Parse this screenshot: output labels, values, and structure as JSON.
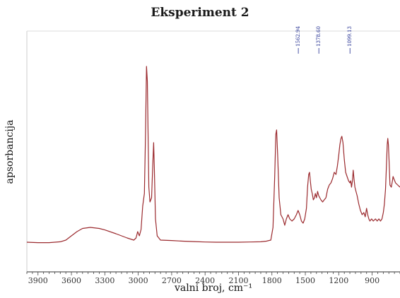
{
  "chart_data": {
    "type": "line",
    "title": "Eksperiment 2",
    "xlabel": "valni broj, cm⁻¹",
    "ylabel": "apsorbancija",
    "xlim": [
      4000,
      650
    ],
    "x_ticks": [
      3900,
      3600,
      3300,
      3000,
      2700,
      2400,
      2100,
      1800,
      1500,
      1200,
      900
    ],
    "grid": false,
    "legend": "none",
    "line_color": "#9b2a2e",
    "peak_color": "#1d2a8f",
    "peak_labels": [
      {
        "x": 1562.94,
        "label": "1562.94"
      },
      {
        "x": 1378.6,
        "label": "1378.60"
      },
      {
        "x": 1099.13,
        "label": "1099.13"
      }
    ],
    "ylim": [
      0,
      1
    ],
    "series": [
      {
        "values": [
          [
            4000,
            0.09
          ],
          [
            3900,
            0.088
          ],
          [
            3800,
            0.088
          ],
          [
            3700,
            0.092
          ],
          [
            3650,
            0.1
          ],
          [
            3600,
            0.12
          ],
          [
            3550,
            0.14
          ],
          [
            3500,
            0.155
          ],
          [
            3430,
            0.16
          ],
          [
            3350,
            0.155
          ],
          [
            3300,
            0.148
          ],
          [
            3200,
            0.13
          ],
          [
            3100,
            0.11
          ],
          [
            3040,
            0.1
          ],
          [
            3020,
            0.11
          ],
          [
            3005,
            0.14
          ],
          [
            2990,
            0.12
          ],
          [
            2975,
            0.15
          ],
          [
            2960,
            0.26
          ],
          [
            2945,
            0.32
          ],
          [
            2935,
            0.6
          ],
          [
            2926,
            0.92
          ],
          [
            2918,
            0.85
          ],
          [
            2905,
            0.35
          ],
          [
            2895,
            0.28
          ],
          [
            2880,
            0.3
          ],
          [
            2870,
            0.45
          ],
          [
            2862,
            0.56
          ],
          [
            2856,
            0.45
          ],
          [
            2845,
            0.2
          ],
          [
            2830,
            0.12
          ],
          [
            2800,
            0.1
          ],
          [
            2700,
            0.098
          ],
          [
            2600,
            0.095
          ],
          [
            2500,
            0.093
          ],
          [
            2400,
            0.091
          ],
          [
            2300,
            0.09
          ],
          [
            2200,
            0.09
          ],
          [
            2100,
            0.09
          ],
          [
            2000,
            0.091
          ],
          [
            1900,
            0.092
          ],
          [
            1850,
            0.095
          ],
          [
            1810,
            0.1
          ],
          [
            1790,
            0.16
          ],
          [
            1775,
            0.4
          ],
          [
            1765,
            0.6
          ],
          [
            1758,
            0.62
          ],
          [
            1748,
            0.5
          ],
          [
            1735,
            0.3
          ],
          [
            1720,
            0.22
          ],
          [
            1700,
            0.2
          ],
          [
            1685,
            0.17
          ],
          [
            1670,
            0.2
          ],
          [
            1655,
            0.22
          ],
          [
            1640,
            0.2
          ],
          [
            1620,
            0.19
          ],
          [
            1600,
            0.2
          ],
          [
            1580,
            0.22
          ],
          [
            1565,
            0.24
          ],
          [
            1550,
            0.22
          ],
          [
            1535,
            0.19
          ],
          [
            1520,
            0.18
          ],
          [
            1505,
            0.2
          ],
          [
            1490,
            0.25
          ],
          [
            1480,
            0.35
          ],
          [
            1470,
            0.41
          ],
          [
            1462,
            0.42
          ],
          [
            1455,
            0.38
          ],
          [
            1447,
            0.34
          ],
          [
            1438,
            0.32
          ],
          [
            1428,
            0.29
          ],
          [
            1418,
            0.3
          ],
          [
            1410,
            0.32
          ],
          [
            1400,
            0.3
          ],
          [
            1390,
            0.33
          ],
          [
            1380,
            0.31
          ],
          [
            1370,
            0.3
          ],
          [
            1360,
            0.29
          ],
          [
            1345,
            0.28
          ],
          [
            1330,
            0.29
          ],
          [
            1315,
            0.3
          ],
          [
            1300,
            0.34
          ],
          [
            1285,
            0.36
          ],
          [
            1270,
            0.37
          ],
          [
            1255,
            0.39
          ],
          [
            1240,
            0.42
          ],
          [
            1225,
            0.41
          ],
          [
            1212,
            0.45
          ],
          [
            1200,
            0.5
          ],
          [
            1190,
            0.55
          ],
          [
            1180,
            0.58
          ],
          [
            1172,
            0.59
          ],
          [
            1162,
            0.56
          ],
          [
            1150,
            0.48
          ],
          [
            1138,
            0.42
          ],
          [
            1125,
            0.4
          ],
          [
            1112,
            0.38
          ],
          [
            1100,
            0.37
          ],
          [
            1092,
            0.38
          ],
          [
            1085,
            0.35
          ],
          [
            1077,
            0.38
          ],
          [
            1070,
            0.43
          ],
          [
            1063,
            0.39
          ],
          [
            1055,
            0.35
          ],
          [
            1045,
            0.33
          ],
          [
            1035,
            0.31
          ],
          [
            1020,
            0.27
          ],
          [
            1005,
            0.24
          ],
          [
            990,
            0.22
          ],
          [
            975,
            0.23
          ],
          [
            962,
            0.21
          ],
          [
            950,
            0.25
          ],
          [
            940,
            0.22
          ],
          [
            930,
            0.2
          ],
          [
            920,
            0.19
          ],
          [
            905,
            0.2
          ],
          [
            890,
            0.19
          ],
          [
            870,
            0.2
          ],
          [
            855,
            0.19
          ],
          [
            840,
            0.2
          ],
          [
            825,
            0.19
          ],
          [
            812,
            0.2
          ],
          [
            800,
            0.23
          ],
          [
            790,
            0.27
          ],
          [
            780,
            0.34
          ],
          [
            772,
            0.45
          ],
          [
            765,
            0.55
          ],
          [
            760,
            0.58
          ],
          [
            754,
            0.55
          ],
          [
            748,
            0.47
          ],
          [
            740,
            0.36
          ],
          [
            728,
            0.35
          ],
          [
            718,
            0.38
          ],
          [
            712,
            0.4
          ],
          [
            705,
            0.39
          ],
          [
            690,
            0.37
          ],
          [
            670,
            0.36
          ],
          [
            650,
            0.35
          ]
        ]
      }
    ]
  }
}
